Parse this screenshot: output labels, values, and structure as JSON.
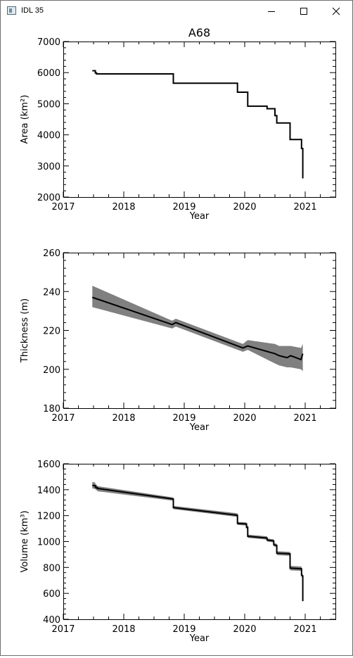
{
  "window": {
    "title": "IDL 35",
    "controls": {
      "minimize": "minimize",
      "maximize": "maximize",
      "close": "close"
    }
  },
  "chart_data": [
    {
      "type": "line",
      "title": "A68",
      "xlabel": "Year",
      "ylabel": "Area (km²)",
      "xlim": [
        2017,
        2021.5
      ],
      "ylim": [
        2000,
        7000
      ],
      "xticks": [
        "2017",
        "2018",
        "2019",
        "2020",
        "2021"
      ],
      "yticks": [
        "2000",
        "3000",
        "4000",
        "5000",
        "6000",
        "7000"
      ],
      "series": [
        {
          "style": "step",
          "color": "#000000",
          "x": [
            2017.48,
            2017.53,
            2017.53,
            2017.55,
            2017.55,
            2018.82,
            2018.82,
            2019.88,
            2019.88,
            2020.05,
            2020.05,
            2020.37,
            2020.37,
            2020.5,
            2020.5,
            2020.53,
            2020.53,
            2020.75,
            2020.75,
            2020.94,
            2020.94,
            2020.96,
            2020.96
          ],
          "y": [
            6060,
            6060,
            5990,
            5990,
            5960,
            5960,
            5660,
            5660,
            5370,
            5370,
            4920,
            4920,
            4840,
            4840,
            4620,
            4620,
            4380,
            4380,
            3850,
            3850,
            3560,
            3560,
            2600
          ]
        }
      ]
    },
    {
      "type": "line",
      "title": "",
      "xlabel": "Year",
      "ylabel": "Thickness (m)",
      "xlim": [
        2017,
        2021.5
      ],
      "ylim": [
        180,
        260
      ],
      "xticks": [
        "2017",
        "2018",
        "2019",
        "2020",
        "2021"
      ],
      "yticks": [
        "180",
        "200",
        "220",
        "240",
        "260"
      ],
      "series": [
        {
          "style": "line",
          "color": "#000000",
          "band_color": "#808080",
          "x": [
            2017.48,
            2018.8,
            2018.86,
            2019.97,
            2020.05,
            2020.5,
            2020.57,
            2020.7,
            2020.76,
            2020.93,
            2020.96
          ],
          "y": [
            237,
            223,
            224,
            211,
            212,
            208,
            207,
            206,
            207,
            205,
            208
          ],
          "band_lo": [
            232,
            221,
            222,
            209,
            210,
            203,
            202,
            201,
            201,
            200,
            199
          ],
          "band_hi": [
            243,
            225,
            226,
            213,
            215,
            213,
            212,
            212,
            212,
            211,
            213
          ]
        }
      ]
    },
    {
      "type": "line",
      "title": "",
      "xlabel": "Year",
      "ylabel": "Volume (km³)",
      "xlim": [
        2017,
        2021.5
      ],
      "ylim": [
        400,
        1600
      ],
      "xticks": [
        "2017",
        "2018",
        "2019",
        "2020",
        "2021"
      ],
      "yticks": [
        "400",
        "600",
        "800",
        "1000",
        "1200",
        "1400",
        "1600"
      ],
      "series": [
        {
          "style": "line",
          "color": "#000000",
          "band_color": "#808080",
          "x": [
            2017.48,
            2017.53,
            2017.53,
            2017.56,
            2017.56,
            2018.82,
            2018.82,
            2019.88,
            2019.88,
            2020.03,
            2020.03,
            2020.05,
            2020.05,
            2020.37,
            2020.37,
            2020.48,
            2020.48,
            2020.53,
            2020.53,
            2020.75,
            2020.75,
            2020.94,
            2020.94,
            2020.96,
            2020.96
          ],
          "y": [
            1432,
            1432,
            1418,
            1418,
            1410,
            1328,
            1262,
            1203,
            1140,
            1135,
            1110,
            1110,
            1040,
            1027,
            1012,
            1005,
            975,
            970,
            910,
            905,
            795,
            790,
            740,
            735,
            540
          ],
          "band_lo": [
            1410,
            1405,
            1400,
            1395,
            1388,
            1315,
            1250,
            1190,
            1128,
            1123,
            1098,
            1098,
            1028,
            1015,
            1000,
            993,
            962,
            957,
            895,
            890,
            778,
            773,
            725,
            720,
            540
          ],
          "band_hi": [
            1460,
            1455,
            1440,
            1435,
            1428,
            1340,
            1275,
            1218,
            1152,
            1147,
            1122,
            1122,
            1054,
            1040,
            1024,
            1017,
            988,
            983,
            925,
            920,
            812,
            807,
            755,
            750,
            540
          ]
        }
      ]
    }
  ]
}
